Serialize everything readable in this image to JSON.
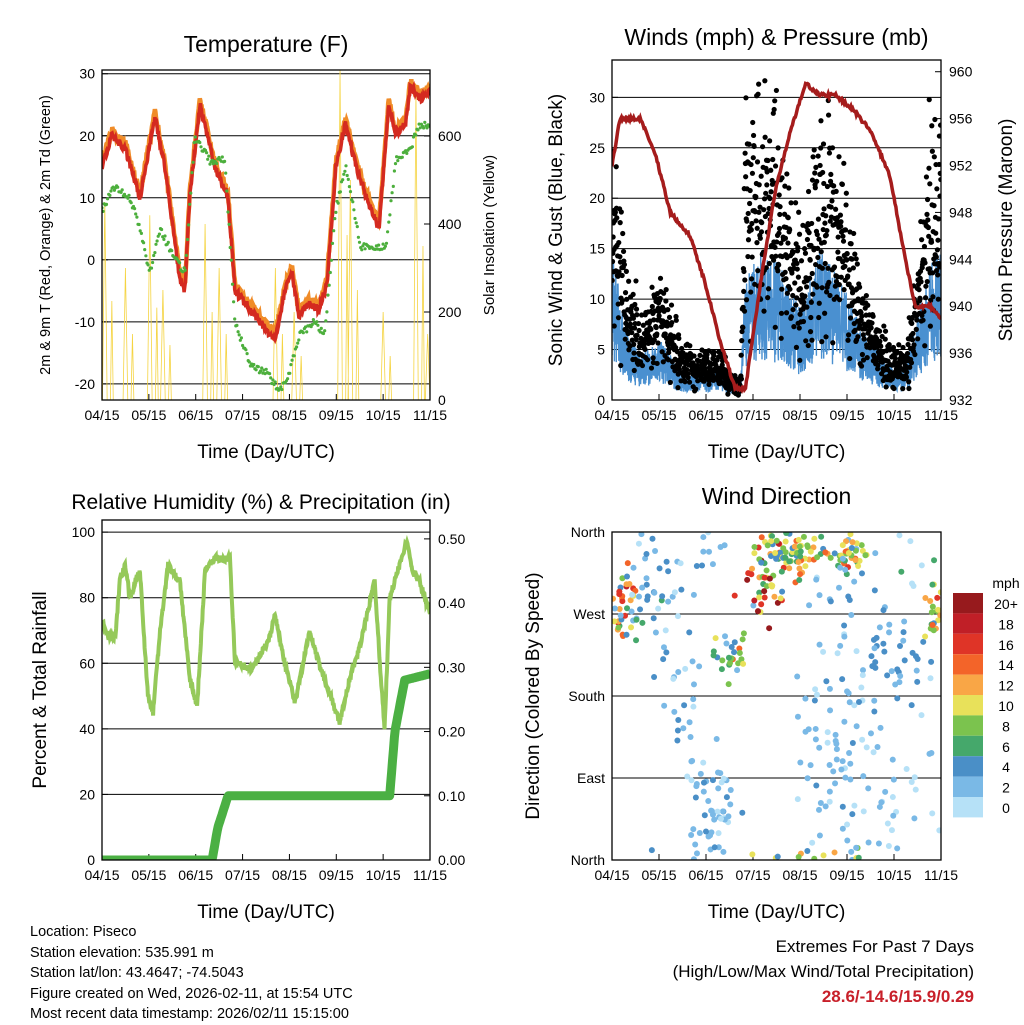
{
  "footer": {
    "location": "Location: Piseco",
    "elevation": "Station elevation: 535.991 m",
    "latlon": "Station lat/lon: 43.4647; -74.5043",
    "created": "Figure created on Wed, 2026-02-11, at 15:54 UTC",
    "recent": "Most recent data timestamp: 2026/02/11 15:15:00",
    "extremes_title": "Extremes For Past 7 Days",
    "extremes_sub": "(High/Low/Max Wind/Total Precipitation)",
    "extremes_values": "28.6/-14.6/15.9/0.29"
  },
  "chart_data": [
    {
      "id": "temp",
      "type": "line",
      "title": "Temperature (F)",
      "xlabel": "Time (Day/UTC)",
      "ylabel": "2m & 9m T (Red, Orange) & 2m Td (Green)",
      "ylabel_right": "Solar Insolation (Yellow)",
      "x_ticks": [
        "04/15",
        "05/15",
        "06/15",
        "07/15",
        "08/15",
        "09/15",
        "10/15",
        "11/15"
      ],
      "xlim": [
        0,
        7
      ],
      "ylim": [
        -22.6,
        30.6
      ],
      "y_ticks": [
        -20,
        -10,
        0,
        10,
        20,
        30
      ],
      "ylim_right": [
        0,
        750
      ],
      "y_ticks_right": [
        0,
        200,
        400,
        600
      ],
      "grid": true,
      "series": [
        {
          "name": "9m T",
          "color": "#f08c28",
          "axis": "left",
          "offset": 0.8,
          "x": [
            0,
            0.21,
            0.49,
            0.81,
            1.13,
            1.34,
            1.66,
            1.77,
            1.87,
            2.09,
            2.41,
            2.69,
            2.84,
            3.05,
            3.37,
            3.69,
            3.9,
            4.05,
            4.2,
            4.41,
            4.63,
            4.8,
            4.99,
            5.2,
            5.42,
            5.74,
            5.91,
            6.12,
            6.27,
            6.48,
            6.58,
            6.8,
            7.0
          ],
          "y": [
            15,
            20,
            18,
            10,
            23,
            15,
            -3,
            -5,
            10,
            25,
            15,
            10,
            -5,
            -7,
            -10,
            -13,
            -5,
            -2,
            -9,
            -7,
            -8,
            -4,
            15,
            22,
            15,
            8,
            5,
            25,
            20,
            22,
            28,
            26,
            27
          ]
        },
        {
          "name": "2m T",
          "color": "#d42a20",
          "axis": "left",
          "offset": 0,
          "x": [
            0,
            0.21,
            0.49,
            0.81,
            1.13,
            1.34,
            1.66,
            1.77,
            1.87,
            2.09,
            2.41,
            2.69,
            2.84,
            3.05,
            3.37,
            3.69,
            3.9,
            4.05,
            4.2,
            4.41,
            4.63,
            4.8,
            4.99,
            5.2,
            5.42,
            5.74,
            5.91,
            6.12,
            6.27,
            6.48,
            6.58,
            6.8,
            7.0
          ],
          "y": [
            15,
            20,
            18,
            10,
            23,
            15,
            -3,
            -5,
            10,
            25,
            15,
            10,
            -5,
            -7,
            -10,
            -13,
            -5,
            -2,
            -9,
            -7,
            -8,
            -4,
            15,
            22,
            15,
            8,
            5,
            25,
            20,
            22,
            28,
            26,
            27
          ]
        },
        {
          "name": "2m Td",
          "color": "#4caf3c",
          "axis": "left",
          "offset": 0,
          "x": [
            0,
            0.28,
            0.6,
            0.81,
            1.02,
            1.24,
            1.56,
            1.77,
            1.98,
            2.3,
            2.62,
            2.84,
            3.16,
            3.48,
            3.8,
            4.01,
            4.22,
            4.54,
            4.75,
            4.99,
            5.2,
            5.52,
            5.84,
            6.06,
            6.27,
            6.58,
            6.8,
            7.0
          ],
          "y": [
            8,
            12,
            10,
            5,
            -2,
            5,
            0,
            -2,
            20,
            16,
            16,
            -10,
            -17,
            -18,
            -21,
            -18,
            -12,
            -10,
            -12,
            8,
            15,
            2,
            2,
            2,
            16,
            18,
            22,
            21
          ]
        },
        {
          "name": "Solar Insolation",
          "color": "#f5d442",
          "axis": "right",
          "peaks_x": [
            0.06,
            0.5,
            1.02,
            1.3,
            2.2,
            2.5,
            3.7,
            4.1,
            5.08,
            5.3,
            6.0,
            6.7,
            6.95
          ],
          "peaks_y": [
            450,
            300,
            420,
            250,
            400,
            300,
            300,
            200,
            750,
            500,
            200,
            700,
            150
          ]
        }
      ]
    },
    {
      "id": "winds",
      "type": "line",
      "title": "Winds (mph) & Pressure (mb)",
      "xlabel": "Time (Day/UTC)",
      "ylabel": "Sonic Wind & Gust (Blue, Black)",
      "ylabel_right": "Station Pressure (Maroon)",
      "x_ticks": [
        "04/15",
        "05/15",
        "06/15",
        "07/15",
        "08/15",
        "09/15",
        "10/15",
        "11/15"
      ],
      "xlim": [
        0,
        7
      ],
      "ylim": [
        0,
        33.7
      ],
      "y_ticks": [
        0,
        5,
        10,
        15,
        20,
        25,
        30
      ],
      "ylim_right": [
        932,
        961
      ],
      "y_ticks_right": [
        932,
        936,
        940,
        944,
        948,
        952,
        956,
        960
      ],
      "grid": true,
      "series": [
        {
          "name": "Gust",
          "color": "#000000",
          "axis": "left",
          "style": "dots",
          "x": [
            0,
            0.28,
            0.6,
            1.02,
            1.45,
            1.88,
            2.3,
            2.73,
            2.84,
            3.16,
            3.58,
            4.01,
            4.43,
            4.86,
            5.28,
            5.71,
            6.03,
            6.24,
            6.45,
            6.77,
            7.0
          ],
          "y": [
            18,
            10,
            5,
            8,
            4,
            3,
            3,
            1,
            18,
            20,
            17,
            10,
            18,
            15,
            8,
            5,
            3,
            3,
            8,
            17,
            20
          ]
        },
        {
          "name": "Sonic Wind",
          "color": "#4a90d0",
          "axis": "left",
          "style": "band",
          "x": [
            0,
            0.28,
            0.6,
            1.02,
            1.45,
            1.88,
            2.3,
            2.73,
            2.84,
            3.16,
            3.58,
            4.01,
            4.43,
            4.86,
            5.28,
            5.71,
            6.03,
            6.24,
            6.45,
            6.77,
            7.0
          ],
          "y": [
            10,
            5,
            3,
            4,
            2,
            2,
            2,
            1,
            8,
            10,
            9,
            6,
            10,
            8,
            5,
            3,
            2,
            2,
            5,
            9,
            10
          ]
        },
        {
          "name": "Station Pressure",
          "color": "#a51c1c",
          "axis": "right",
          "style": "line",
          "x": [
            0,
            0.17,
            0.6,
            0.92,
            1.24,
            1.66,
            1.98,
            2.3,
            2.62,
            2.84,
            3.16,
            3.48,
            3.8,
            4.12,
            4.43,
            4.75,
            5.07,
            5.5,
            5.92,
            6.24,
            6.45,
            6.77,
            7.0
          ],
          "y": [
            952,
            956,
            956,
            953,
            948,
            946,
            942,
            937,
            933,
            933,
            942,
            950,
            955,
            959,
            958,
            958,
            957,
            955,
            951,
            944,
            940,
            940,
            939
          ]
        }
      ]
    },
    {
      "id": "rh",
      "type": "line",
      "title": "Relative Humidity (%) & Precipitation (in)",
      "xlabel": "Time (Day/UTC)",
      "ylabel": "Percent & Total Rainfall",
      "x_ticks": [
        "04/15",
        "05/15",
        "06/15",
        "07/15",
        "08/15",
        "09/15",
        "10/15",
        "11/15"
      ],
      "xlim": [
        0,
        7
      ],
      "ylim": [
        0,
        103.7
      ],
      "y_ticks": [
        0,
        20,
        40,
        60,
        80,
        100
      ],
      "ylim_right": [
        0,
        0.5294
      ],
      "y_ticks_right": [
        "0.00",
        "0.10",
        "0.20",
        "0.30",
        "0.40",
        "0.50"
      ],
      "grid": true,
      "series": [
        {
          "name": "Relative Humidity",
          "color": "#95c95a",
          "axis": "left",
          "x": [
            0,
            0.13,
            0.28,
            0.38,
            0.49,
            0.6,
            0.81,
            0.98,
            1.09,
            1.24,
            1.41,
            1.66,
            1.88,
            2.03,
            2.2,
            2.41,
            2.73,
            2.84,
            2.94,
            3.16,
            3.37,
            3.58,
            3.69,
            3.9,
            4.12,
            4.22,
            4.43,
            4.63,
            5.07,
            5.28,
            5.5,
            5.82,
            5.93,
            6.03,
            6.14,
            6.35,
            6.5,
            6.63,
            6.78,
            7.0
          ],
          "y": [
            73,
            68,
            68,
            85,
            90,
            80,
            88,
            50,
            45,
            70,
            90,
            85,
            55,
            47,
            88,
            92,
            92,
            60,
            60,
            58,
            62,
            68,
            75,
            60,
            48,
            55,
            70,
            60,
            42,
            55,
            65,
            85,
            60,
            40,
            80,
            90,
            97,
            88,
            85,
            75
          ]
        },
        {
          "name": "Total Rainfall",
          "color": "#4bb043",
          "axis": "right",
          "x": [
            0,
            2.35,
            2.47,
            2.69,
            6.14,
            6.25,
            6.46,
            7.0
          ],
          "y": [
            0,
            0,
            0.05,
            0.1,
            0.1,
            0.2,
            0.28,
            0.29
          ]
        }
      ]
    },
    {
      "id": "wdir",
      "type": "scatter",
      "title": "Wind Direction",
      "xlabel": "Time (Day/UTC)",
      "ylabel": "Direction (Colored By Speed)",
      "x_ticks": [
        "04/15",
        "05/15",
        "06/15",
        "07/15",
        "08/15",
        "09/15",
        "10/15",
        "11/15"
      ],
      "xlim": [
        0,
        7
      ],
      "ylim": [
        0,
        360
      ],
      "y_ticks": [
        {
          "v": 0,
          "label": "North"
        },
        {
          "v": 90,
          "label": "East"
        },
        {
          "v": 180,
          "label": "South"
        },
        {
          "v": 270,
          "label": "West"
        },
        {
          "v": 360,
          "label": "North"
        }
      ],
      "grid": true,
      "clusters": [
        {
          "x": 0.2,
          "dir": 280,
          "sx": 0.2,
          "sd": 20,
          "speed": 12,
          "n": 40
        },
        {
          "x": 0.9,
          "dir": 300,
          "sx": 0.5,
          "sd": 40,
          "speed": 4,
          "n": 45
        },
        {
          "x": 1.5,
          "dir": 200,
          "sx": 0.3,
          "sd": 80,
          "speed": 3,
          "n": 30
        },
        {
          "x": 2.2,
          "dir": 50,
          "sx": 0.25,
          "sd": 35,
          "speed": 3,
          "n": 55
        },
        {
          "x": 2.5,
          "dir": 225,
          "sx": 0.15,
          "sd": 15,
          "speed": 8,
          "n": 25
        },
        {
          "x": 3.3,
          "dir": 315,
          "sx": 0.25,
          "sd": 22,
          "speed": 13,
          "n": 50
        },
        {
          "x": 4.0,
          "dir": 340,
          "sx": 0.45,
          "sd": 14,
          "speed": 10,
          "n": 70
        },
        {
          "x": 4.5,
          "dir": 100,
          "sx": 0.3,
          "sd": 90,
          "speed": 3,
          "n": 45
        },
        {
          "x": 5.1,
          "dir": 340,
          "sx": 0.15,
          "sd": 15,
          "speed": 10,
          "n": 35
        },
        {
          "x": 5.0,
          "dir": 150,
          "sx": 0.3,
          "sd": 100,
          "speed": 3,
          "n": 45
        },
        {
          "x": 6.0,
          "dir": 230,
          "sx": 0.4,
          "sd": 35,
          "speed": 4,
          "n": 45
        },
        {
          "x": 6.0,
          "dir": 70,
          "sx": 0.4,
          "sd": 60,
          "speed": 2,
          "n": 35
        },
        {
          "x": 6.95,
          "dir": 280,
          "sx": 0.15,
          "sd": 20,
          "speed": 10,
          "n": 30
        }
      ],
      "legend": {
        "title": "mph",
        "placement": "right",
        "labels": [
          "20+",
          "18",
          "16",
          "14",
          "12",
          "10",
          "8",
          "6",
          "4",
          "2",
          "0"
        ],
        "colors": [
          "#971a1d",
          "#c01f27",
          "#df3427",
          "#f36429",
          "#f9a646",
          "#e8e15a",
          "#7bc34e",
          "#45a86b",
          "#4a8fc7",
          "#7ab9e6",
          "#b6e1f7"
        ]
      }
    }
  ]
}
